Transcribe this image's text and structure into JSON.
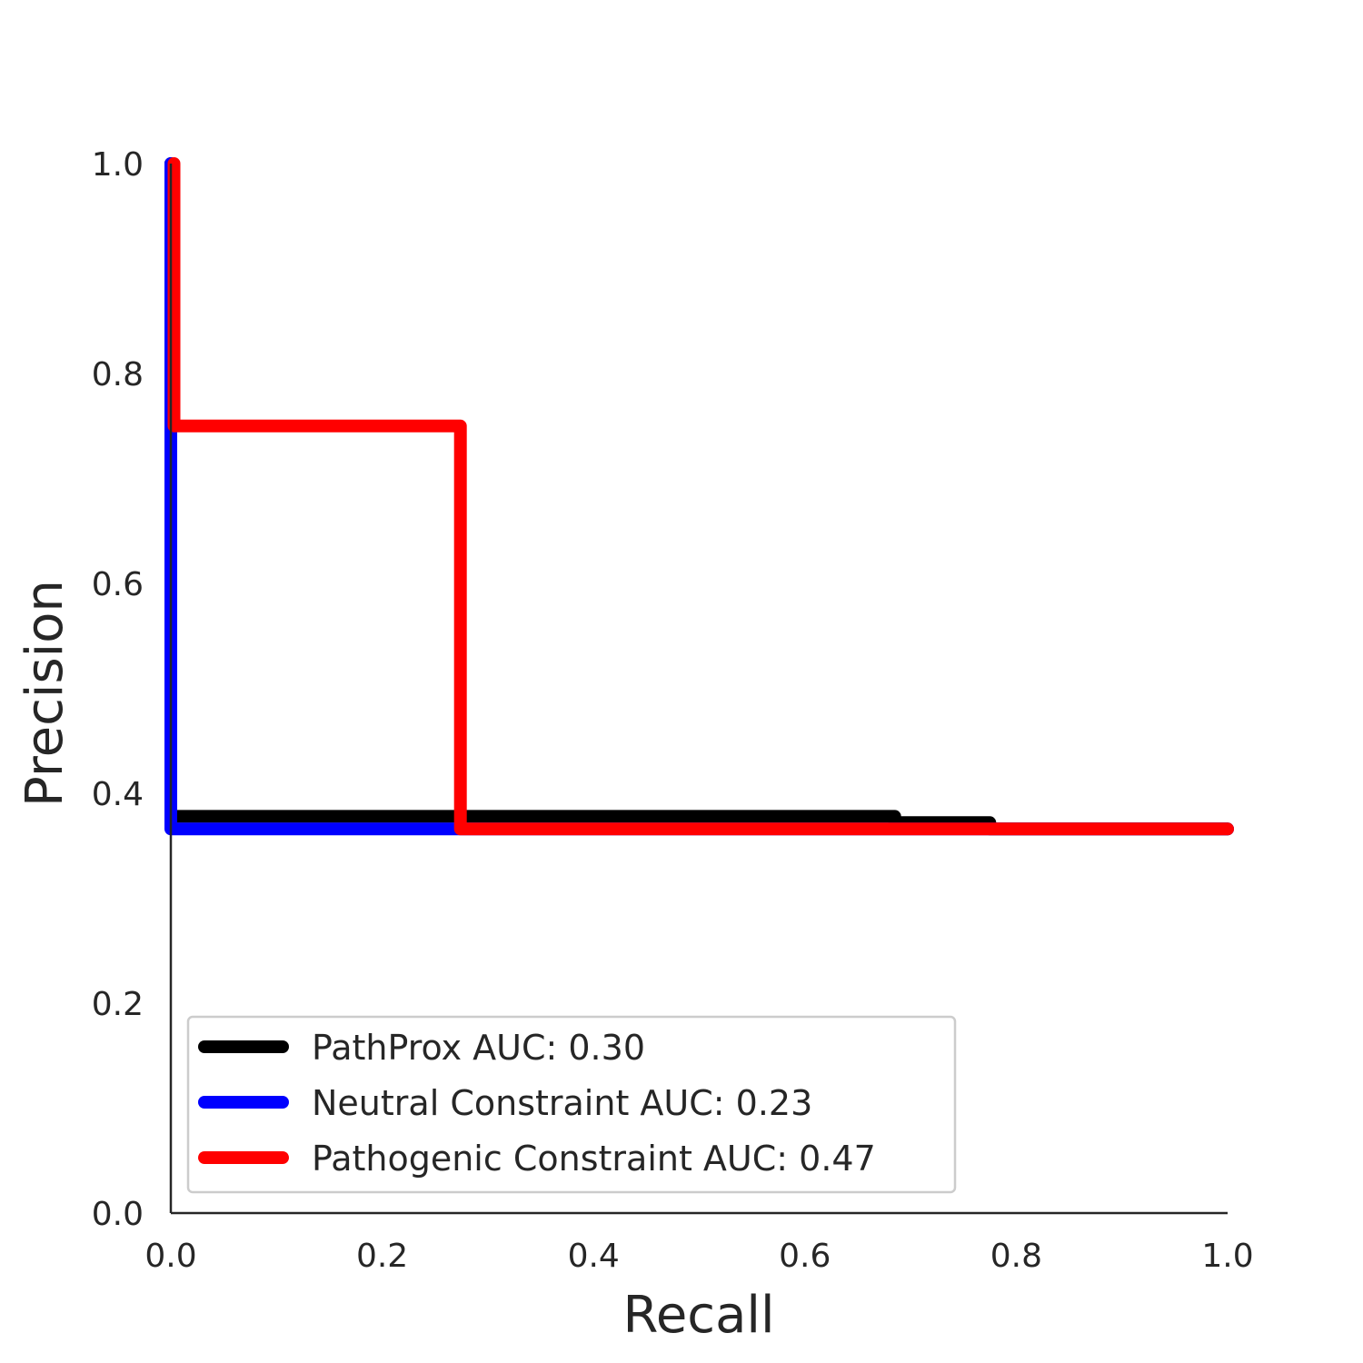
{
  "chart_data": {
    "type": "line",
    "title": "",
    "xlabel": "Recall",
    "ylabel": "Precision",
    "xlim": [
      0.0,
      1.0
    ],
    "ylim": [
      0.0,
      1.0
    ],
    "xticks": [
      "0.0",
      "0.2",
      "0.4",
      "0.6",
      "0.8",
      "1.0"
    ],
    "yticks": [
      "0.0",
      "0.2",
      "0.4",
      "0.6",
      "0.8",
      "1.0"
    ],
    "grid": false,
    "legend_position": "lower-left",
    "series": [
      {
        "name": "PathProx AUC:  0.30",
        "color": "#000000",
        "x": [
          0.0,
          0.0,
          0.0,
          0.685,
          0.685,
          0.775,
          0.775,
          1.0
        ],
        "y": [
          1.0,
          0.75,
          0.378,
          0.378,
          0.372,
          0.372,
          0.366,
          0.366
        ]
      },
      {
        "name": "Neutral Constraint AUC:  0.23",
        "color": "#0000ff",
        "x": [
          0.0,
          0.0,
          0.0,
          1.0
        ],
        "y": [
          1.0,
          0.75,
          0.366,
          0.366
        ]
      },
      {
        "name": "Pathogenic Constraint AUC:  0.47",
        "color": "#ff0000",
        "x": [
          0.003,
          0.003,
          0.274,
          0.274,
          1.0
        ],
        "y": [
          1.0,
          0.75,
          0.75,
          0.366,
          0.366
        ]
      }
    ]
  }
}
